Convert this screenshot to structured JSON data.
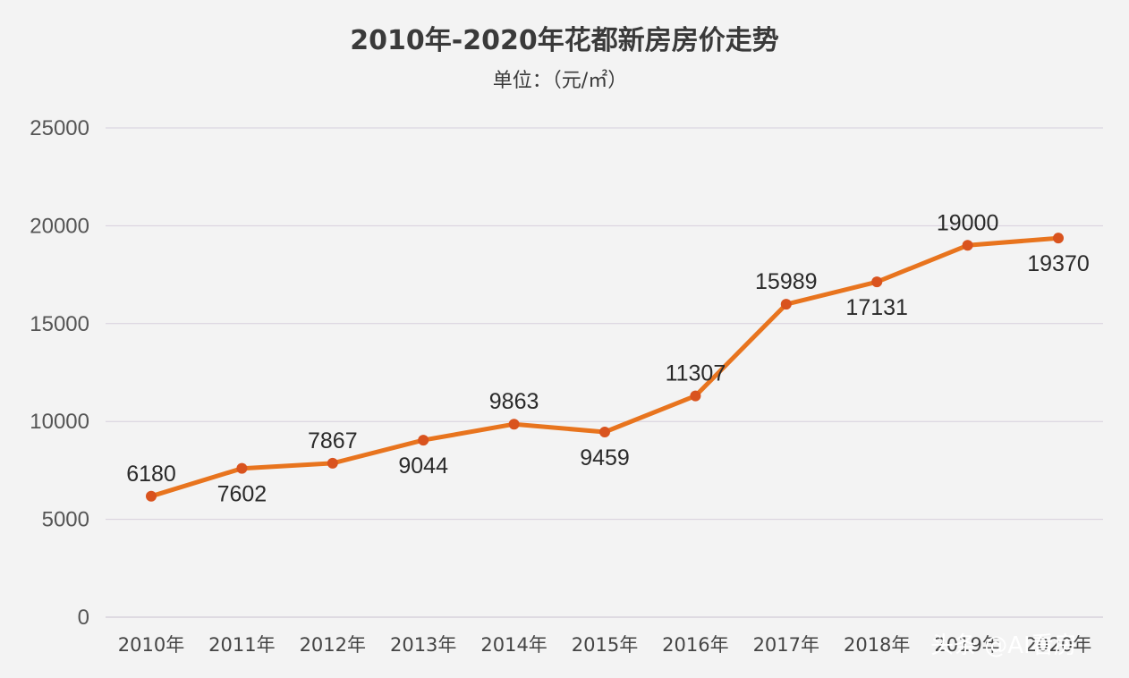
{
  "chart_data": {
    "type": "line",
    "title": "2010年-2020年花都新房房价走势",
    "subtitle": "单位：（元/㎡）",
    "xlabel": "",
    "ylabel": "",
    "categories": [
      "2010年",
      "2011年",
      "2012年",
      "2013年",
      "2014年",
      "2015年",
      "2016年",
      "2017年",
      "2018年",
      "2019年",
      "2020年"
    ],
    "series": [
      {
        "name": "花都新房房价",
        "values": [
          6180,
          7602,
          7867,
          9044,
          9863,
          9459,
          11307,
          15989,
          17131,
          19000,
          19370
        ],
        "data_labels": [
          "6180",
          "7602",
          "7867",
          "9044",
          "9863",
          "9459",
          "11307",
          "15989",
          "17131",
          "19000",
          "19370"
        ],
        "label_positions": [
          "above",
          "below",
          "above",
          "below",
          "above",
          "below",
          "above",
          "above",
          "below",
          "above",
          "below"
        ]
      }
    ],
    "ylim": [
      0,
      25000
    ],
    "yticks": [
      0,
      5000,
      10000,
      15000,
      20000,
      25000
    ],
    "ytick_labels": [
      "0",
      "5000",
      "10000",
      "15000",
      "20000",
      "25000"
    ],
    "grid": true,
    "legend": "none",
    "line_color": "#e8741e",
    "marker_color": "#d9531e",
    "grid_color": "#d6cfdc"
  },
  "watermark": {
    "text": "头条 @AI看房",
    "color": "#ffffff"
  }
}
